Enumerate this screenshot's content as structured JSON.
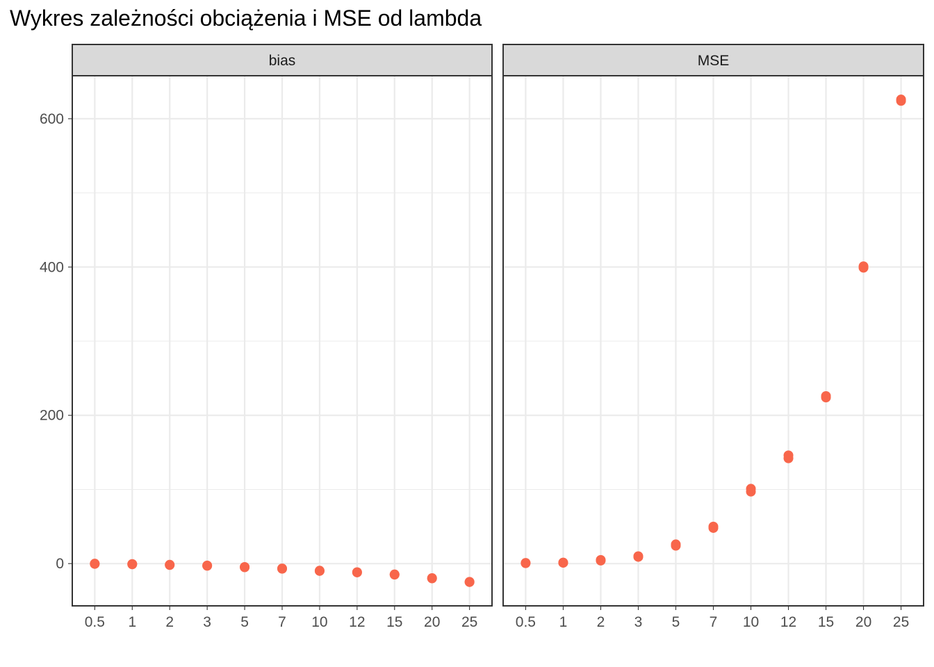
{
  "chart_data": {
    "type": "scatter",
    "title": "Wykres zależności obciążenia i MSE od lambda",
    "xlabel": "",
    "ylabel": "",
    "categories": [
      "0.5",
      "1",
      "2",
      "3",
      "5",
      "7",
      "10",
      "12",
      "15",
      "20",
      "25"
    ],
    "y_ticks": [
      0,
      200,
      400,
      600
    ],
    "ylim": [
      -57,
      658
    ],
    "grid": true,
    "legend": "none",
    "point_color": "#F8664B",
    "panels": [
      {
        "name": "bias",
        "points": [
          {
            "x": "0.5",
            "y": -0.5
          },
          {
            "x": "0.5",
            "y": 0
          },
          {
            "x": "1",
            "y": -1
          },
          {
            "x": "1",
            "y": -0.5
          },
          {
            "x": "2",
            "y": -2
          },
          {
            "x": "2",
            "y": -1.5
          },
          {
            "x": "3",
            "y": -3
          },
          {
            "x": "3",
            "y": -2.5
          },
          {
            "x": "5",
            "y": -5
          },
          {
            "x": "5",
            "y": -4.5
          },
          {
            "x": "7",
            "y": -7
          },
          {
            "x": "7",
            "y": -6.5
          },
          {
            "x": "10",
            "y": -10
          },
          {
            "x": "10",
            "y": -9.5
          },
          {
            "x": "12",
            "y": -12
          },
          {
            "x": "12",
            "y": -11.5
          },
          {
            "x": "15",
            "y": -15
          },
          {
            "x": "15",
            "y": -14.5
          },
          {
            "x": "20",
            "y": -20
          },
          {
            "x": "20",
            "y": -19.5
          },
          {
            "x": "25",
            "y": -25
          },
          {
            "x": "25",
            "y": -24.5
          }
        ]
      },
      {
        "name": "MSE",
        "points": [
          {
            "x": "0.5",
            "y": 0.5
          },
          {
            "x": "0.5",
            "y": 1
          },
          {
            "x": "1",
            "y": 1
          },
          {
            "x": "1",
            "y": 1.5
          },
          {
            "x": "2",
            "y": 4
          },
          {
            "x": "2",
            "y": 5
          },
          {
            "x": "3",
            "y": 9
          },
          {
            "x": "3",
            "y": 10
          },
          {
            "x": "5",
            "y": 24
          },
          {
            "x": "5",
            "y": 26
          },
          {
            "x": "7",
            "y": 48
          },
          {
            "x": "7",
            "y": 50
          },
          {
            "x": "10",
            "y": 97
          },
          {
            "x": "10",
            "y": 101
          },
          {
            "x": "12",
            "y": 142
          },
          {
            "x": "12",
            "y": 146
          },
          {
            "x": "15",
            "y": 224
          },
          {
            "x": "15",
            "y": 226
          },
          {
            "x": "20",
            "y": 399
          },
          {
            "x": "20",
            "y": 401
          },
          {
            "x": "25",
            "y": 624
          },
          {
            "x": "25",
            "y": 626
          }
        ]
      }
    ]
  }
}
